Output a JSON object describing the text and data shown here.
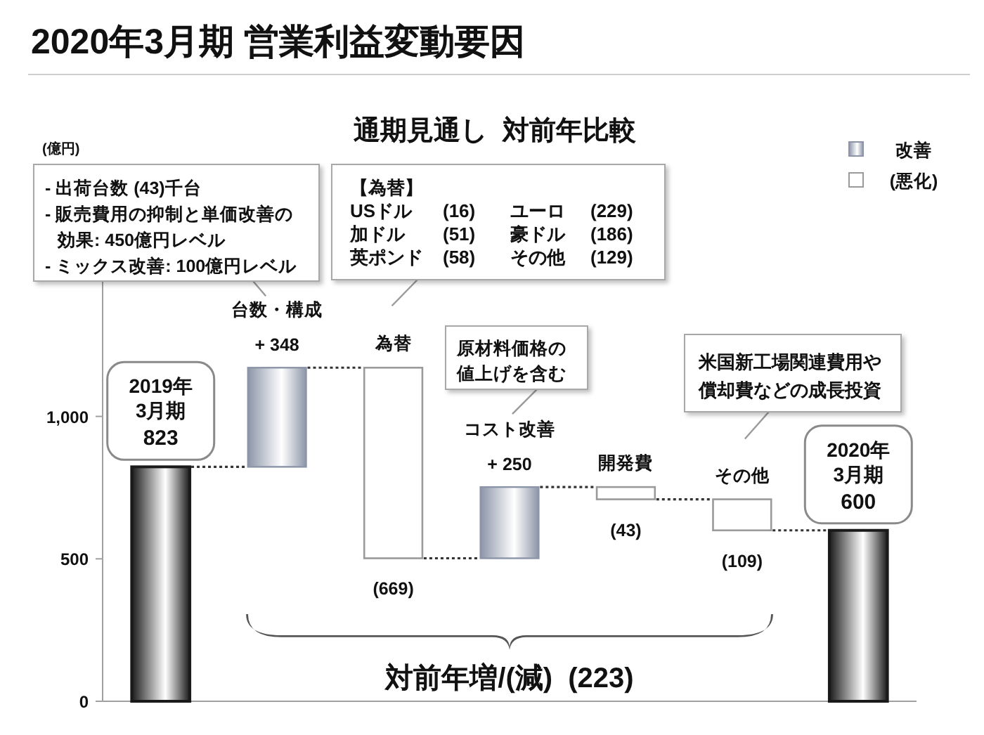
{
  "chart_data": {
    "type": "bar",
    "title": "2020年3月期 営業利益変動要因",
    "subtitle": "通期見通し  対前年比較",
    "categories": [
      "2019年\n3月期",
      "台数・構成",
      "為替",
      "コスト改善",
      "開発費",
      "その他",
      "2020年\n3月期"
    ],
    "series": [
      {
        "color": "#1a1a1a",
        "values": [
          823,
          null,
          null,
          null,
          null,
          null,
          600
        ],
        "base": [
          0,
          null,
          null,
          null,
          null,
          null,
          0
        ],
        "value_labels": [
          "823",
          null,
          null,
          null,
          null,
          null,
          "600"
        ]
      },
      {
        "name": "改善",
        "color": "#8c95a8",
        "values": [
          null,
          348,
          null,
          250,
          null,
          null,
          null
        ],
        "base": [
          null,
          823,
          null,
          502,
          null,
          null,
          null
        ],
        "value_labels": [
          null,
          "+ 348",
          null,
          "+ 250",
          null,
          null,
          null
        ]
      },
      {
        "name": "(悪化)",
        "color": "#9a9a9a",
        "values": [
          null,
          null,
          -669,
          null,
          -43,
          -109,
          null
        ],
        "base": [
          null,
          null,
          1171,
          null,
          752,
          709,
          null
        ],
        "value_labels": [
          null,
          null,
          "(669)",
          null,
          "(43)",
          "(109)",
          null
        ]
      }
    ],
    "ylim": [
      0,
      1480
    ],
    "yticks": [
      0,
      500,
      {
        "value": 1000,
        "label": "1,000"
      }
    ],
    "legend": "top right",
    "annotations": [
      "(億円)",
      "- 出荷台数 (43)千台\n- 販売費用の抑制と単価改善の効果: 450億円レベル\n- ミックス改善: 100億円レベル",
      "【為替】\nUSドル\t(16)\tユーロ\t(229)\n加ドル\t(51)\t豪ドル\t(186)\n英ポンド\t(58)\tその他\t(129)",
      "原材料価格の値上げを含む",
      "米国新工場関連費用や償却費などの成長投資",
      "対前年増/(減)  (223)"
    ]
  }
}
